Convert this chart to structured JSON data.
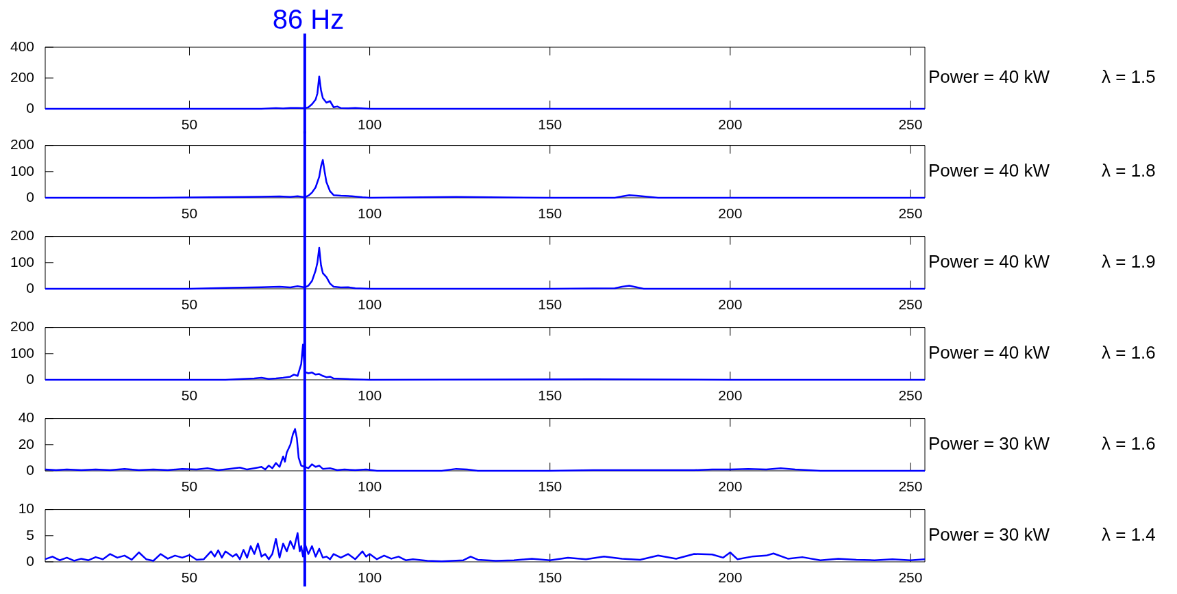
{
  "chart_data": [
    {
      "type": "line",
      "color": "#0000ff",
      "xlim": [
        10,
        254
      ],
      "xticks": [
        50,
        100,
        150,
        200,
        250
      ],
      "ylim": [
        0,
        400
      ],
      "yticks": [
        0,
        200,
        400
      ],
      "ref_lines": [
        {
          "axis": "x",
          "value": 82,
          "label": "86 Hz",
          "color": "#0000ff"
        }
      ],
      "annotations": [
        "Power = 40 kW",
        "λ = 1.5"
      ],
      "x": [
        10,
        30,
        50,
        70,
        74,
        76,
        78,
        80,
        82,
        83,
        84,
        85,
        85.5,
        86,
        86.5,
        87,
        88,
        89,
        90,
        91,
        92,
        94,
        96,
        100,
        130,
        160,
        200,
        254
      ],
      "values": [
        0,
        0,
        0,
        0,
        5,
        2,
        6,
        6,
        4,
        10,
        30,
        60,
        100,
        210,
        120,
        70,
        40,
        50,
        10,
        15,
        5,
        3,
        6,
        0,
        0,
        0,
        0,
        0
      ]
    },
    {
      "type": "line",
      "color": "#0000ff",
      "xlim": [
        10,
        254
      ],
      "xticks": [
        50,
        100,
        150,
        200,
        250
      ],
      "ylim": [
        0,
        200
      ],
      "yticks": [
        0,
        100,
        200
      ],
      "ref_lines": [
        {
          "axis": "x",
          "value": 82,
          "color": "#0000ff"
        }
      ],
      "annotations": [
        "Power = 40 kW",
        "λ = 1.8"
      ],
      "x": [
        10,
        40,
        66,
        70,
        75,
        78,
        80,
        82,
        83,
        84,
        85,
        86,
        86.5,
        87,
        87.5,
        88,
        89,
        90,
        92,
        95,
        98,
        100,
        124,
        150,
        168,
        170,
        172,
        174,
        176,
        180,
        200,
        254
      ],
      "values": [
        0,
        0,
        3,
        4,
        5,
        3,
        6,
        2,
        8,
        20,
        40,
        80,
        120,
        145,
        100,
        60,
        25,
        10,
        8,
        6,
        2,
        0,
        3,
        0,
        0,
        5,
        10,
        8,
        5,
        0,
        0,
        0
      ]
    },
    {
      "type": "line",
      "color": "#0000ff",
      "xlim": [
        10,
        254
      ],
      "xticks": [
        50,
        100,
        150,
        200,
        250
      ],
      "ylim": [
        0,
        200
      ],
      "yticks": [
        0,
        100,
        200
      ],
      "ref_lines": [
        {
          "axis": "x",
          "value": 82,
          "color": "#0000ff"
        }
      ],
      "annotations": [
        "Power = 40 kW",
        "λ = 1.9"
      ],
      "x": [
        10,
        50,
        62,
        70,
        75,
        78,
        80,
        82,
        83,
        84,
        85,
        85.5,
        86,
        86.5,
        87,
        88,
        89,
        90,
        92,
        94,
        96,
        100,
        150,
        168,
        170,
        172,
        174,
        176,
        200,
        254
      ],
      "values": [
        0,
        0,
        4,
        6,
        8,
        5,
        10,
        5,
        12,
        30,
        70,
        100,
        157,
        90,
        60,
        45,
        20,
        8,
        5,
        6,
        2,
        0,
        0,
        2,
        8,
        12,
        6,
        0,
        0,
        0
      ]
    },
    {
      "type": "line",
      "color": "#0000ff",
      "xlim": [
        10,
        254
      ],
      "xticks": [
        50,
        100,
        150,
        200,
        250
      ],
      "ylim": [
        0,
        200
      ],
      "yticks": [
        0,
        100,
        200
      ],
      "ref_lines": [
        {
          "axis": "x",
          "value": 82,
          "color": "#0000ff"
        }
      ],
      "annotations": [
        "Power = 40 kW",
        "λ = 1.6"
      ],
      "x": [
        10,
        60,
        68,
        70,
        72,
        74,
        76,
        78,
        79,
        80,
        81,
        81.5,
        82,
        83,
        84,
        85,
        86,
        87,
        88,
        89,
        90,
        95,
        100,
        162,
        200,
        254
      ],
      "values": [
        0,
        0,
        5,
        8,
        3,
        5,
        8,
        12,
        20,
        15,
        60,
        135,
        30,
        25,
        28,
        20,
        22,
        15,
        10,
        12,
        5,
        2,
        0,
        2,
        0,
        0
      ]
    },
    {
      "type": "line",
      "color": "#0000ff",
      "xlim": [
        10,
        254
      ],
      "xticks": [
        50,
        100,
        150,
        200,
        250
      ],
      "ylim": [
        0,
        40
      ],
      "yticks": [
        0,
        20,
        40
      ],
      "ref_lines": [
        {
          "axis": "x",
          "value": 82,
          "color": "#0000ff"
        }
      ],
      "annotations": [
        "Power = 30 kW",
        "λ = 1.6"
      ],
      "x": [
        10,
        13,
        16,
        20,
        24,
        28,
        32,
        36,
        40,
        44,
        48,
        52,
        55,
        58,
        61,
        64,
        66,
        68,
        70,
        71,
        72,
        73,
        74,
        75,
        76,
        76.5,
        77,
        78,
        78.7,
        79.3,
        79.8,
        80.3,
        81,
        82,
        83,
        84,
        85,
        86,
        87,
        89,
        91,
        93,
        96,
        99,
        102,
        120,
        124,
        127,
        130,
        150,
        162,
        172,
        190,
        195,
        200,
        205,
        210,
        214,
        218,
        225,
        254
      ],
      "values": [
        1,
        0.5,
        1,
        0.5,
        1,
        0.5,
        1.5,
        0.5,
        1,
        0.5,
        1.5,
        1,
        2,
        0.5,
        1.5,
        2.5,
        1,
        2,
        3,
        1,
        4,
        2,
        6,
        3,
        11,
        7,
        14,
        20,
        28,
        32,
        25,
        10,
        4,
        3,
        2,
        5,
        3,
        4,
        1.5,
        2,
        0.5,
        1,
        0.5,
        1,
        0,
        0,
        1.5,
        1,
        0,
        0,
        0.5,
        0.5,
        0.5,
        1,
        1,
        1.5,
        1,
        2,
        1,
        0,
        0
      ]
    },
    {
      "type": "line",
      "color": "#0000ff",
      "xlim": [
        10,
        254
      ],
      "xticks": [
        50,
        100,
        150,
        200,
        250
      ],
      "ylim": [
        0,
        10
      ],
      "yticks": [
        0,
        5,
        10
      ],
      "ref_lines": [
        {
          "axis": "x",
          "value": 82,
          "color": "#0000ff"
        }
      ],
      "annotations": [
        "Power = 30 kW",
        "λ = 1.4"
      ],
      "x": [
        10,
        12,
        14,
        16,
        18,
        20,
        22,
        24,
        26,
        28,
        30,
        32,
        34,
        36,
        38,
        40,
        42,
        44,
        46,
        48,
        50,
        52,
        54,
        56,
        57,
        58,
        59,
        60,
        62,
        63,
        64,
        65,
        66,
        67,
        68,
        69,
        70,
        71,
        72,
        73,
        74,
        75,
        76,
        77,
        78,
        79,
        80,
        80.6,
        81,
        81.5,
        82,
        83,
        84,
        85,
        86,
        87,
        88,
        89,
        90,
        92,
        94,
        96,
        98,
        99,
        100,
        102,
        104,
        106,
        108,
        110,
        112,
        116,
        120,
        126,
        128,
        130,
        135,
        140,
        145,
        150,
        155,
        160,
        165,
        170,
        175,
        180,
        185,
        190,
        195,
        198,
        200,
        202,
        206,
        210,
        212,
        216,
        220,
        225,
        230,
        235,
        240,
        245,
        250,
        254
      ],
      "values": [
        0.5,
        1,
        0.3,
        0.8,
        0.2,
        0.6,
        0.3,
        0.9,
        0.5,
        1.5,
        0.8,
        1.2,
        0.4,
        1.8,
        0.5,
        0.2,
        1.5,
        0.6,
        1.2,
        0.8,
        1.3,
        0.4,
        0.5,
        2,
        1,
        2.2,
        0.8,
        2,
        1,
        1.5,
        0.5,
        2.3,
        0.8,
        3,
        1.5,
        3.5,
        1,
        1.5,
        0.5,
        1.5,
        4.4,
        0.8,
        3.5,
        2,
        4,
        2.5,
        5.5,
        2,
        3,
        1,
        3.5,
        1.5,
        3,
        1,
        2.5,
        0.8,
        1,
        0.5,
        1.5,
        0.8,
        1.5,
        0.5,
        2,
        1,
        1.5,
        0.5,
        1.2,
        0.6,
        1,
        0.3,
        0.5,
        0.2,
        0.1,
        0.3,
        1,
        0.4,
        0.2,
        0.3,
        0.6,
        0.3,
        0.8,
        0.5,
        1,
        0.6,
        0.4,
        1.2,
        0.6,
        1.5,
        1.4,
        0.8,
        1.8,
        0.5,
        1,
        1.2,
        1.6,
        0.6,
        0.9,
        0.3,
        0.6,
        0.4,
        0.3,
        0.5,
        0.3,
        0.5
      ]
    }
  ]
}
